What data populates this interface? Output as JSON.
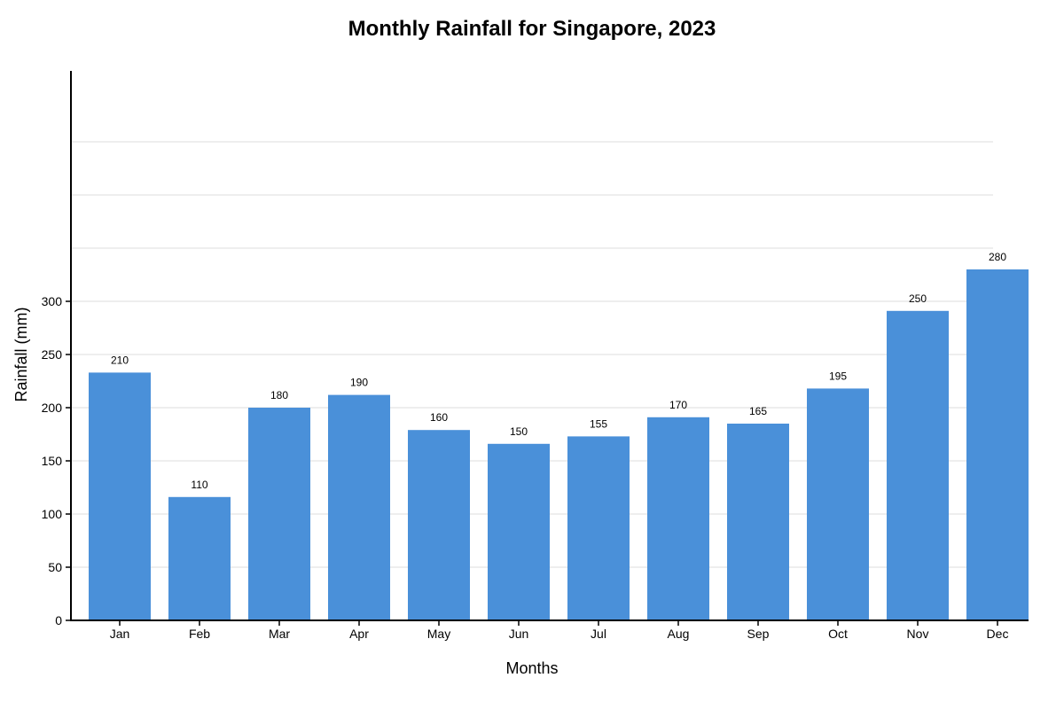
{
  "chart_data": {
    "type": "bar",
    "title": "Monthly Rainfall for Singapore, 2023",
    "xlabel": "Months",
    "ylabel": "Rainfall (mm)",
    "categories": [
      "Jan",
      "Feb",
      "Mar",
      "Apr",
      "May",
      "Jun",
      "Jul",
      "Aug",
      "Sep",
      "Oct",
      "Nov",
      "Dec"
    ],
    "values": [
      210,
      110,
      180,
      190,
      160,
      150,
      155,
      170,
      165,
      195,
      250,
      280
    ],
    "bar_heights": [
      233,
      116,
      200,
      212,
      179,
      166,
      173,
      191,
      185,
      218,
      291,
      330
    ],
    "ylim": [
      0,
      500
    ],
    "yticks": [
      0,
      50,
      100,
      150,
      200,
      250,
      300
    ],
    "grid": true,
    "legend": "none",
    "colors": {
      "bar": "#4a90d9",
      "grid": "#dddddd",
      "axis": "#000000"
    }
  }
}
